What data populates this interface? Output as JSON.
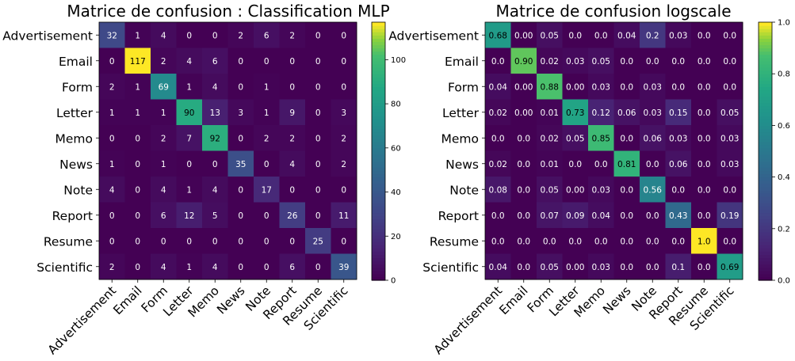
{
  "chart_data": [
    {
      "type": "heatmap",
      "title": "Matrice de confusion : Classification MLP",
      "x_categories": [
        "Advertisement",
        "Email",
        "Form",
        "Letter",
        "Memo",
        "News",
        "Note",
        "Report",
        "Resume",
        "Scientific"
      ],
      "y_categories": [
        "Advertisement",
        "Email",
        "Form",
        "Letter",
        "Memo",
        "News",
        "Note",
        "Report",
        "Resume",
        "Scientific"
      ],
      "cell_labels": [
        [
          "32",
          "1",
          "4",
          "0",
          "0",
          "2",
          "6",
          "2",
          "0",
          "0"
        ],
        [
          "0",
          "117",
          "2",
          "4",
          "6",
          "0",
          "0",
          "0",
          "0",
          "0"
        ],
        [
          "2",
          "1",
          "69",
          "1",
          "4",
          "0",
          "1",
          "0",
          "0",
          "0"
        ],
        [
          "1",
          "1",
          "1",
          "90",
          "13",
          "3",
          "1",
          "9",
          "0",
          "3"
        ],
        [
          "0",
          "0",
          "2",
          "7",
          "92",
          "0",
          "2",
          "2",
          "0",
          "2"
        ],
        [
          "1",
          "0",
          "1",
          "0",
          "0",
          "35",
          "0",
          "4",
          "0",
          "2"
        ],
        [
          "4",
          "0",
          "4",
          "1",
          "4",
          "0",
          "17",
          "0",
          "0",
          "0"
        ],
        [
          "0",
          "0",
          "6",
          "12",
          "5",
          "0",
          "0",
          "26",
          "0",
          "11"
        ],
        [
          "0",
          "0",
          "0",
          "0",
          "0",
          "0",
          "0",
          "0",
          "25",
          "0"
        ],
        [
          "2",
          "0",
          "4",
          "1",
          "4",
          "0",
          "0",
          "6",
          "0",
          "39"
        ]
      ],
      "colormap": "viridis",
      "vmin": 0,
      "vmax": 117,
      "colorbar_ticks": [
        "0",
        "20",
        "40",
        "60",
        "80",
        "100"
      ],
      "colorbar_tick_values": [
        0,
        20,
        40,
        60,
        80,
        100
      ]
    },
    {
      "type": "heatmap",
      "title": "Matrice de confusion logscale",
      "x_categories": [
        "Advertisement",
        "Email",
        "Form",
        "Letter",
        "Memo",
        "News",
        "Note",
        "Report",
        "Resume",
        "Scientific"
      ],
      "y_categories": [
        "Advertisement",
        "Email",
        "Form",
        "Letter",
        "Memo",
        "News",
        "Note",
        "Report",
        "Resume",
        "Scientific"
      ],
      "cell_labels": [
        [
          "0.68",
          "0.00",
          "0.05",
          "0.0",
          "0.0",
          "0.04",
          "0.2",
          "0.03",
          "0.0",
          "0.0"
        ],
        [
          "0.0",
          "0.90",
          "0.02",
          "0.03",
          "0.05",
          "0.0",
          "0.0",
          "0.0",
          "0.0",
          "0.0"
        ],
        [
          "0.04",
          "0.00",
          "0.88",
          "0.00",
          "0.03",
          "0.0",
          "0.03",
          "0.0",
          "0.0",
          "0.0"
        ],
        [
          "0.02",
          "0.00",
          "0.01",
          "0.73",
          "0.12",
          "0.06",
          "0.03",
          "0.15",
          "0.0",
          "0.05"
        ],
        [
          "0.0",
          "0.0",
          "0.02",
          "0.05",
          "0.85",
          "0.0",
          "0.06",
          "0.03",
          "0.0",
          "0.03"
        ],
        [
          "0.02",
          "0.0",
          "0.01",
          "0.0",
          "0.0",
          "0.81",
          "0.0",
          "0.06",
          "0.0",
          "0.03"
        ],
        [
          "0.08",
          "0.0",
          "0.05",
          "0.00",
          "0.03",
          "0.0",
          "0.56",
          "0.0",
          "0.0",
          "0.0"
        ],
        [
          "0.0",
          "0.0",
          "0.07",
          "0.09",
          "0.04",
          "0.0",
          "0.0",
          "0.43",
          "0.0",
          "0.19"
        ],
        [
          "0.0",
          "0.0",
          "0.0",
          "0.0",
          "0.0",
          "0.0",
          "0.0",
          "0.0",
          "1.0",
          "0.0"
        ],
        [
          "0.04",
          "0.0",
          "0.05",
          "0.00",
          "0.03",
          "0.0",
          "0.0",
          "0.1",
          "0.0",
          "0.69"
        ]
      ],
      "colormap": "viridis",
      "vmin": 0,
      "vmax": 1,
      "colorbar_ticks": [
        "0.0",
        "0.2",
        "0.4",
        "0.6",
        "0.8",
        "1.0"
      ],
      "colorbar_tick_values": [
        0,
        0.2,
        0.4,
        0.6,
        0.8,
        1.0
      ]
    }
  ]
}
